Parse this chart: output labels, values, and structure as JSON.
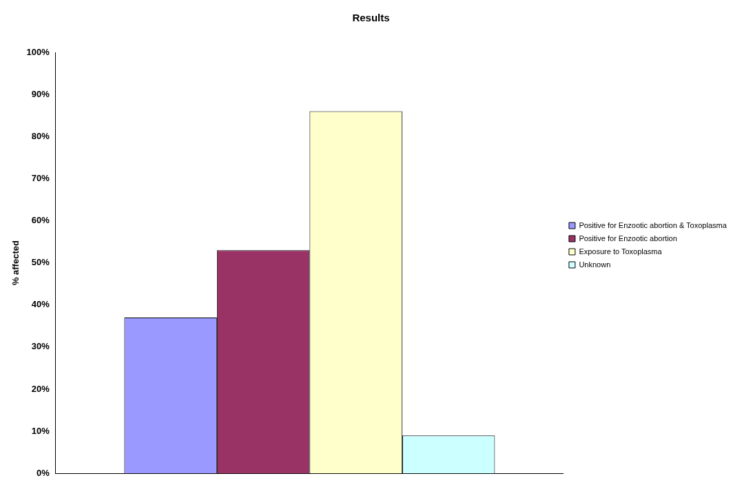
{
  "chart_data": {
    "type": "bar",
    "title": "Results",
    "ylabel": "% affected",
    "categories": [
      null
    ],
    "series": [
      {
        "name": "Positive for Enzootic abortion & Toxoplasma",
        "color": "#9999ff",
        "values": [
          37
        ]
      },
      {
        "name": "Positive for Enzootic abortion",
        "color": "#993366",
        "values": [
          53
        ]
      },
      {
        "name": "Exposure to Toxoplasma",
        "color": "#ffffcc",
        "values": [
          86
        ]
      },
      {
        "name": "Unknown",
        "color": "#ccffff",
        "values": [
          9
        ]
      }
    ],
    "ylim": [
      0,
      100
    ],
    "yticks": [
      {
        "value": 0,
        "label": "0%"
      },
      {
        "value": 10,
        "label": "10%"
      },
      {
        "value": 20,
        "label": "20%"
      },
      {
        "value": 30,
        "label": "30%"
      },
      {
        "value": 40,
        "label": "40%"
      },
      {
        "value": 50,
        "label": "50%"
      },
      {
        "value": 60,
        "label": "60%"
      },
      {
        "value": 70,
        "label": "70%"
      },
      {
        "value": 80,
        "label": "80%"
      },
      {
        "value": 90,
        "label": "90%"
      },
      {
        "value": 100,
        "label": "100%"
      }
    ],
    "grid": false,
    "legend": "right"
  }
}
